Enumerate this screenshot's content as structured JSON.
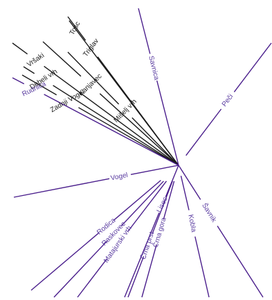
{
  "colors": {
    "black": "#1a1a1a",
    "purple": "#5a3ca0",
    "line_purple": "#4a1e8c",
    "background": "#ffffff"
  },
  "rays": [
    {
      "label": "Tosc",
      "color": "black"
    },
    {
      "label": "Triglav",
      "color": "black"
    },
    {
      "label": "Mišelj vrh",
      "color": "black"
    },
    {
      "label": "Kanjavec",
      "color": "black"
    },
    {
      "label": "Vršaki",
      "color": "black"
    },
    {
      "label": "Debeli vrh",
      "color": "black"
    },
    {
      "label": "Zadnji Vogel",
      "color": "black"
    },
    {
      "label": "Rudnica",
      "color": "purple"
    },
    {
      "label": "Savnica",
      "color": "purple"
    },
    {
      "label": "Peči",
      "color": "purple"
    },
    {
      "label": "Vogel",
      "color": "purple"
    },
    {
      "label": "Šavnik",
      "color": "purple"
    },
    {
      "label": "Rodica",
      "color": "purple"
    },
    {
      "label": "Raskovec",
      "color": "purple"
    },
    {
      "label": "Matajurski vrh",
      "color": "purple"
    },
    {
      "label": "Lisec",
      "color": "purple"
    },
    {
      "label": "Črna prst",
      "color": "purple"
    },
    {
      "label": "Črna gora",
      "color": "purple"
    },
    {
      "label": "Kobla",
      "color": "purple"
    }
  ]
}
